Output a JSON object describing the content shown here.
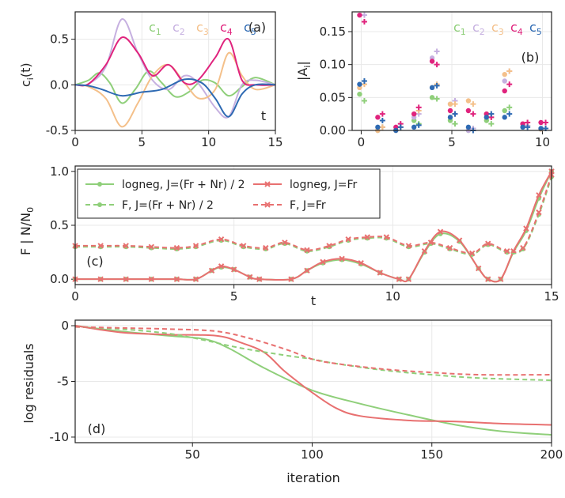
{
  "colors": {
    "c1": "#8fcf7a",
    "c2": "#c6b0e0",
    "c3": "#f4c08a",
    "c4": "#e0237d",
    "c5": "#2e6ab3",
    "green": "#8fcf7a",
    "red": "#e87070"
  },
  "chart_data": [
    {
      "panel": "(a)",
      "type": "line",
      "ylabel_main": "c",
      "ylabel_sub": "i",
      "ylabel_tail": "(t)",
      "xlabel": "t",
      "xlim": [
        0,
        15
      ],
      "ylim": [
        -0.5,
        0.8
      ],
      "xticks": [
        "0",
        "5",
        "10",
        "15"
      ],
      "yticks": [
        "-0.5",
        "0.0",
        "0.5"
      ],
      "legend": [
        {
          "base": "c",
          "sub": "1",
          "color": "c1"
        },
        {
          "base": "c",
          "sub": "2",
          "color": "c2"
        },
        {
          "base": "c",
          "sub": "3",
          "color": "c3"
        },
        {
          "base": "c",
          "sub": "4",
          "color": "c4"
        },
        {
          "base": "c",
          "sub": "5",
          "color": "c5"
        }
      ],
      "series": [
        {
          "name": "c1",
          "color": "c1",
          "x": [
            0,
            1,
            1.8,
            2.6,
            3.5,
            4.5,
            5.5,
            6.5,
            7.5,
            8.5,
            9.5,
            10.5,
            11.5,
            12.5,
            13.5,
            15
          ],
          "y": [
            0,
            0.05,
            0.13,
            0.02,
            -0.2,
            -0.05,
            0.15,
            0.02,
            -0.13,
            -0.08,
            0.05,
            0.02,
            -0.12,
            -0.02,
            0.08,
            0
          ]
        },
        {
          "name": "c2",
          "color": "c2",
          "x": [
            0,
            1,
            2.3,
            3.5,
            4.7,
            5.8,
            7,
            8.2,
            9.2,
            10.5,
            11.5,
            12.5,
            13.5,
            15
          ],
          "y": [
            0,
            0.01,
            0.2,
            0.72,
            0.35,
            0.05,
            -0.05,
            0.1,
            0.02,
            -0.25,
            -0.35,
            0,
            0.05,
            0
          ],
          "dashed": false
        },
        {
          "name": "c3",
          "color": "c3",
          "x": [
            0,
            1,
            2.3,
            3.5,
            4.7,
            5.8,
            7,
            8.2,
            9.3,
            10.5,
            11.5,
            12.5,
            13.5,
            15
          ],
          "y": [
            0,
            -0.02,
            -0.15,
            -0.46,
            -0.2,
            0.1,
            0.22,
            0.02,
            -0.15,
            -0.05,
            0.35,
            0.1,
            -0.05,
            0
          ]
        },
        {
          "name": "c4",
          "color": "c4",
          "x": [
            0,
            1,
            2.3,
            3.5,
            4.7,
            5.8,
            7,
            8.2,
            9.2,
            10.5,
            11.5,
            12.5,
            13.5,
            15
          ],
          "y": [
            0,
            0.01,
            0.22,
            0.52,
            0.35,
            0.1,
            0.22,
            0.02,
            0.05,
            0.3,
            0.5,
            0.05,
            0,
            0
          ]
        },
        {
          "name": "c5",
          "color": "c5",
          "x": [
            0,
            1,
            2,
            3.5,
            5,
            6.5,
            8.2,
            9.5,
            10.5,
            11.5,
            12.5,
            13.5,
            15
          ],
          "y": [
            0,
            -0.01,
            -0.05,
            -0.12,
            -0.08,
            -0.05,
            0.06,
            0.02,
            -0.15,
            -0.35,
            -0.1,
            0,
            0
          ]
        }
      ]
    },
    {
      "panel": "(b)",
      "type": "scatter",
      "ylabel_main": "|A",
      "ylabel_sub": "i",
      "ylabel_tail": "|",
      "xlim": [
        -0.5,
        10.5
      ],
      "ylim": [
        0,
        0.18
      ],
      "xticks": [
        "0",
        "5",
        "10"
      ],
      "yticks": [
        "0.00",
        "0.05",
        "0.10",
        "0.15"
      ],
      "legend": [
        {
          "base": "c",
          "sub": "1",
          "color": "c1"
        },
        {
          "base": "c",
          "sub": "2",
          "color": "c2"
        },
        {
          "base": "c",
          "sub": "3",
          "color": "c3"
        },
        {
          "base": "c",
          "sub": "4",
          "color": "c4"
        },
        {
          "base": "c",
          "sub": "5",
          "color": "c5"
        }
      ],
      "dots": {
        "c1": [
          0.055,
          0.0,
          0.0,
          0.015,
          0.05,
          0.015,
          0.0,
          0.015,
          0.03,
          0.005,
          0.002
        ],
        "c2": [
          0.065,
          0.0,
          0.0,
          0.02,
          0.11,
          0.04,
          0.0,
          0.02,
          0.075,
          0.005,
          0.002
        ],
        "c3": [
          0.065,
          0.0,
          0.0,
          0.025,
          0.065,
          0.04,
          0.045,
          0.025,
          0.085,
          0.01,
          0.002
        ],
        "c4": [
          0.175,
          0.02,
          0.005,
          0.025,
          0.105,
          0.03,
          0.03,
          0.025,
          0.06,
          0.01,
          0.012
        ],
        "c5": [
          0.07,
          0.005,
          0.0,
          0.005,
          0.065,
          0.02,
          0.005,
          0.02,
          0.02,
          0.005,
          0.003
        ]
      },
      "plus": {
        "c1": [
          0.045,
          0.005,
          0.005,
          0.01,
          0.048,
          0.01,
          0.003,
          0.01,
          0.035,
          0.007,
          0.003
        ],
        "c2": [
          0.175,
          0.005,
          0.005,
          0.025,
          0.12,
          0.045,
          0.003,
          0.025,
          0.09,
          0.007,
          0.003
        ],
        "c3": [
          0.07,
          0.005,
          0.005,
          0.03,
          0.07,
          0.04,
          0.04,
          0.02,
          0.09,
          0.012,
          0.003
        ],
        "c4": [
          0.165,
          0.025,
          0.01,
          0.035,
          0.1,
          0.025,
          0.025,
          0.02,
          0.07,
          0.012,
          0.012
        ],
        "c5": [
          0.075,
          0.015,
          0.005,
          0.008,
          0.068,
          0.025,
          0.0,
          0.025,
          0.025,
          0.005,
          0.003
        ]
      }
    },
    {
      "panel": "(c)",
      "type": "line",
      "ylabel": "F | N/N",
      "ylabel_sub": "0",
      "xlabel": "t",
      "xlim": [
        0,
        15
      ],
      "ylim": [
        0,
        1
      ],
      "xticks": [
        "0",
        "5",
        "10",
        "15"
      ],
      "yticks": [
        "0.0",
        "0.5",
        "1.0"
      ],
      "legend": [
        {
          "label": "logneg, J=(Fr + Nr) / 2",
          "color": "green",
          "dashed": false,
          "marker": "dot"
        },
        {
          "label": "logneg, J=Fr",
          "color": "red",
          "dashed": false,
          "marker": "x"
        },
        {
          "label": "F, J=(Fr + Nr) / 2",
          "color": "green",
          "dashed": true,
          "marker": "dot"
        },
        {
          "label": "F, J=Fr",
          "color": "red",
          "dashed": true,
          "marker": "x"
        }
      ],
      "series": [
        {
          "name": "logneg, J=(Fr + Nr) / 2",
          "color": "green",
          "dashed": false,
          "marker": "dot",
          "x": [
            0,
            0.8,
            1.6,
            2.4,
            3.2,
            3.8,
            4.3,
            4.6,
            5,
            5.5,
            5.8,
            6.8,
            7.3,
            7.8,
            8.4,
            9,
            9.6,
            10.2,
            10.5,
            11,
            11.5,
            12.1,
            12.7,
            13,
            13.4,
            13.8,
            14.2,
            14.6,
            15
          ],
          "y": [
            0,
            0,
            0,
            0,
            0,
            0,
            0.08,
            0.11,
            0.09,
            0.02,
            0,
            0,
            0.08,
            0.15,
            0.18,
            0.14,
            0.06,
            0,
            0,
            0.25,
            0.42,
            0.35,
            0.1,
            0,
            0,
            0.25,
            0.45,
            0.75,
            1.0
          ]
        },
        {
          "name": "logneg, J=Fr",
          "color": "red",
          "dashed": false,
          "marker": "x",
          "x": [
            0,
            0.8,
            1.6,
            2.4,
            3.2,
            3.8,
            4.3,
            4.6,
            5,
            5.5,
            5.8,
            6.8,
            7.3,
            7.8,
            8.4,
            9,
            9.6,
            10.2,
            10.5,
            11,
            11.5,
            12.1,
            12.7,
            13,
            13.4,
            13.8,
            14.2,
            14.6,
            15
          ],
          "y": [
            0,
            0,
            0,
            0,
            0,
            0,
            0.08,
            0.12,
            0.09,
            0.02,
            0,
            0,
            0.08,
            0.16,
            0.19,
            0.15,
            0.06,
            0,
            0,
            0.26,
            0.44,
            0.36,
            0.1,
            0,
            0,
            0.26,
            0.47,
            0.78,
            1.0
          ]
        },
        {
          "name": "F, J=(Fr + Nr) / 2",
          "color": "green",
          "dashed": true,
          "marker": "dot",
          "x": [
            0,
            0.8,
            1.6,
            2.4,
            3.2,
            3.8,
            4.6,
            5.3,
            6,
            6.6,
            7.3,
            8,
            8.6,
            9.2,
            9.8,
            10.5,
            11.2,
            11.8,
            12.5,
            13,
            13.6,
            14.1,
            14.6,
            15
          ],
          "y": [
            0.3,
            0.3,
            0.3,
            0.29,
            0.28,
            0.3,
            0.36,
            0.3,
            0.28,
            0.33,
            0.26,
            0.3,
            0.36,
            0.38,
            0.38,
            0.3,
            0.33,
            0.28,
            0.23,
            0.32,
            0.25,
            0.28,
            0.6,
            0.95
          ]
        },
        {
          "name": "F, J=Fr",
          "color": "red",
          "dashed": true,
          "marker": "x",
          "x": [
            0,
            0.8,
            1.6,
            2.4,
            3.2,
            3.8,
            4.6,
            5.3,
            6,
            6.6,
            7.3,
            8,
            8.6,
            9.2,
            9.8,
            10.5,
            11.2,
            11.8,
            12.5,
            13,
            13.6,
            14.1,
            14.6,
            15
          ],
          "y": [
            0.31,
            0.31,
            0.31,
            0.3,
            0.29,
            0.31,
            0.37,
            0.31,
            0.29,
            0.34,
            0.27,
            0.31,
            0.37,
            0.39,
            0.39,
            0.31,
            0.34,
            0.29,
            0.24,
            0.33,
            0.26,
            0.29,
            0.62,
            0.97
          ]
        }
      ]
    },
    {
      "panel": "(d)",
      "type": "line",
      "ylabel": "log residuals",
      "xlabel": "iteration",
      "xlim": [
        1,
        200
      ],
      "ylim": [
        -10.5,
        0.5
      ],
      "xticks": [
        "50",
        "100",
        "150",
        "200"
      ],
      "yticks": [
        "0",
        "-5",
        "-10"
      ],
      "series": [
        {
          "name": "green solid",
          "color": "green",
          "dashed": false,
          "x": [
            1,
            20,
            40,
            55,
            65,
            80,
            100,
            120,
            140,
            160,
            180,
            200
          ],
          "y": [
            0,
            -0.5,
            -0.9,
            -1.2,
            -2,
            -3.8,
            -5.8,
            -7,
            -8,
            -8.9,
            -9.5,
            -9.8
          ]
        },
        {
          "name": "red solid",
          "color": "red",
          "dashed": false,
          "x": [
            1,
            20,
            40,
            60,
            70,
            80,
            88,
            95,
            100,
            110,
            120,
            140,
            160,
            180,
            200
          ],
          "y": [
            0,
            -0.6,
            -0.8,
            -0.9,
            -1.5,
            -2.4,
            -4,
            -5.2,
            -6,
            -7.4,
            -8.1,
            -8.5,
            -8.6,
            -8.8,
            -8.9
          ]
        },
        {
          "name": "green dashed",
          "color": "green",
          "dashed": true,
          "x": [
            1,
            20,
            40,
            55,
            70,
            90,
            100,
            110,
            130,
            150,
            170,
            200
          ],
          "y": [
            -0.1,
            -0.3,
            -0.7,
            -1.3,
            -2,
            -2.7,
            -3,
            -3.4,
            -4,
            -4.4,
            -4.7,
            -4.9
          ]
        },
        {
          "name": "red dashed",
          "color": "red",
          "dashed": true,
          "x": [
            1,
            20,
            40,
            60,
            75,
            90,
            100,
            110,
            130,
            150,
            170,
            200
          ],
          "y": [
            -0.1,
            -0.2,
            -0.3,
            -0.5,
            -1.2,
            -2.2,
            -3,
            -3.4,
            -3.9,
            -4.2,
            -4.4,
            -4.4
          ]
        }
      ]
    }
  ]
}
